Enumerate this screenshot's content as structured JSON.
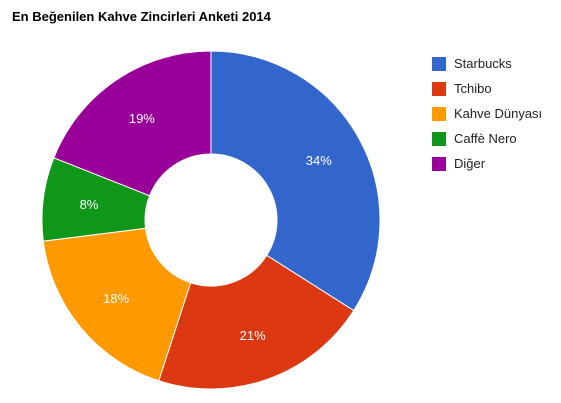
{
  "chart_data": {
    "type": "pie",
    "title": "En Beğenilen Kahve Zincirleri Anketi 2014",
    "categories": [
      "Starbucks",
      "Tchibo",
      "Kahve Dünyası",
      "Caffè Nero",
      "Diğer"
    ],
    "values": [
      34,
      21,
      18,
      8,
      19
    ],
    "labels": [
      "34%",
      "21%",
      "18%",
      "8%",
      "19%"
    ],
    "colors": [
      "#3366cc",
      "#dc3912",
      "#ff9900",
      "#109618",
      "#990099"
    ],
    "donut": true,
    "legend_position": "right"
  }
}
